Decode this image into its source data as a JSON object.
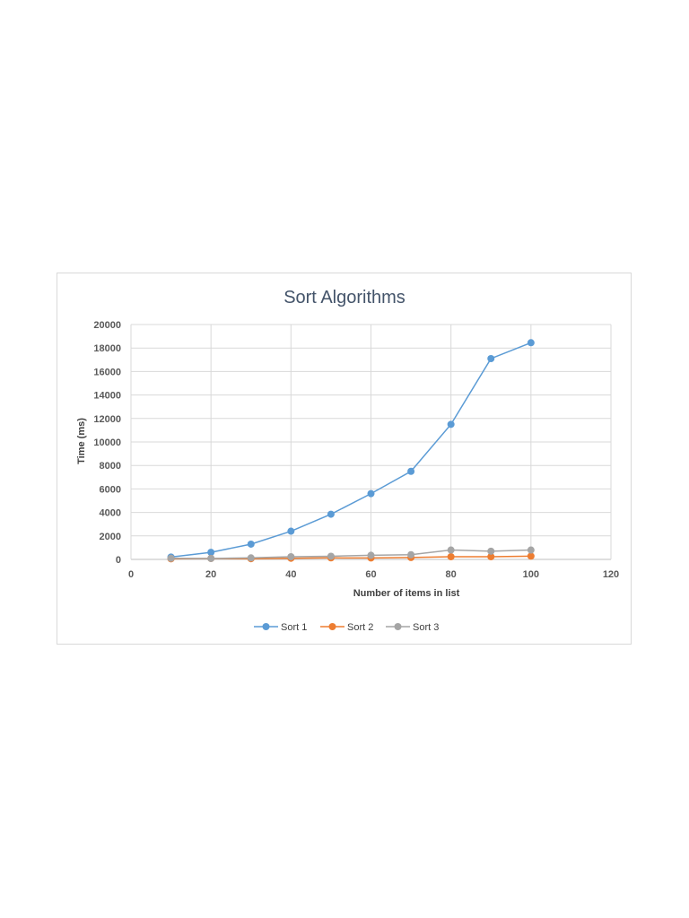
{
  "chart_data": {
    "type": "scatter",
    "title": "Sort Algorithms",
    "xlabel": "Number of items in list",
    "ylabel": "Time (ms)",
    "xlim": [
      0,
      120
    ],
    "ylim": [
      0,
      20000
    ],
    "xticks": [
      0,
      20,
      40,
      60,
      80,
      100,
      120
    ],
    "yticks": [
      0,
      2000,
      4000,
      6000,
      8000,
      10000,
      12000,
      14000,
      16000,
      18000,
      20000
    ],
    "x": [
      10,
      20,
      30,
      40,
      50,
      60,
      70,
      80,
      90,
      100
    ],
    "series": [
      {
        "name": "Sort 1",
        "color": "#5b9bd5",
        "values": [
          200,
          600,
          1300,
          2400,
          3850,
          5600,
          7500,
          11500,
          17100,
          18450
        ]
      },
      {
        "name": "Sort 2",
        "color": "#ed7d31",
        "values": [
          50,
          80,
          60,
          100,
          130,
          120,
          160,
          230,
          230,
          280
        ]
      },
      {
        "name": "Sort 3",
        "color": "#a5a5a5",
        "values": [
          100,
          80,
          130,
          230,
          270,
          350,
          400,
          800,
          700,
          800
        ]
      }
    ],
    "grid": true,
    "legend": "bottom"
  }
}
